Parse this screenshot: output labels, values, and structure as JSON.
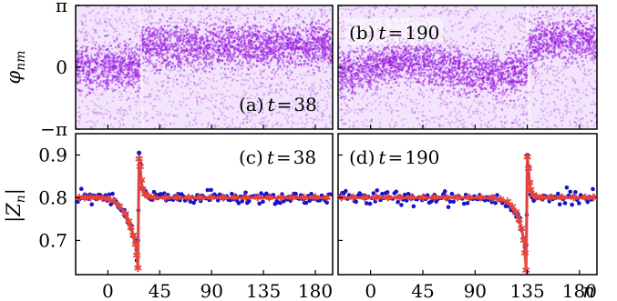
{
  "chart_data": [
    {
      "type": "scatter",
      "panel": "a",
      "label": "(a) t = 38",
      "time": 38,
      "x_axis": {
        "range": [
          -28,
          195
        ],
        "ticks": [
          0,
          45,
          90,
          135,
          180
        ]
      },
      "ylabel": "φnm",
      "ylim": [
        -3.1416,
        3.1416
      ],
      "yticks": [
        "π",
        "0",
        "−π"
      ],
      "yticks_values": [
        3.1416,
        0,
        -3.1416
      ],
      "phase_jump_at_n": 28,
      "left_band_center": 0.0,
      "right_band_center": 1.1,
      "color": "#9b1ee0"
    },
    {
      "type": "scatter",
      "panel": "b",
      "label": "(b) t = 190",
      "time": 190,
      "x_axis": {
        "range": [
          -28,
          195
        ],
        "ticks": [
          0,
          45,
          90,
          135,
          180
        ]
      },
      "ylim": [
        -3.1416,
        3.1416
      ],
      "phase_jump_at_n": 135,
      "left_band_center": 0.0,
      "right_band_center": 1.1,
      "color": "#9b1ee0"
    },
    {
      "type": "line",
      "panel": "c",
      "label": "(c) t = 38",
      "time": 38,
      "xlim": [
        -28,
        195
      ],
      "xticks": [
        "0",
        "45",
        "90",
        "135",
        "180"
      ],
      "xticks_values": [
        0,
        45,
        90,
        135,
        180
      ],
      "ylabel": "|Zn|",
      "ylim": [
        0.62,
        0.95
      ],
      "yticks": [
        "0.9",
        "0.8",
        "0.7"
      ],
      "yticks_values": [
        0.9,
        0.8,
        0.7
      ],
      "series": [
        {
          "style": "blue dots",
          "color": "#1414c8",
          "x": [
            -25,
            -20,
            -15,
            -10,
            -5,
            0,
            5,
            10,
            15,
            18,
            20,
            22,
            24,
            25,
            26,
            27,
            28,
            29,
            30,
            32,
            35,
            40,
            50,
            60,
            70,
            80,
            90,
            100,
            110,
            120,
            130,
            140,
            150,
            160,
            170,
            180,
            190
          ],
          "y": [
            0.8,
            0.799,
            0.804,
            0.797,
            0.801,
            0.795,
            0.79,
            0.776,
            0.757,
            0.741,
            0.728,
            0.712,
            0.695,
            0.678,
            0.7,
            0.905,
            0.88,
            0.841,
            0.822,
            0.808,
            0.803,
            0.8,
            0.802,
            0.798,
            0.801,
            0.799,
            0.803,
            0.798,
            0.801,
            0.8,
            0.802,
            0.799,
            0.801,
            0.8,
            0.798,
            0.802,
            0.8
          ]
        },
        {
          "style": "red stars",
          "color": "#e8453a",
          "x": [
            -25,
            -20,
            -15,
            -10,
            -5,
            0,
            5,
            10,
            15,
            18,
            20,
            22,
            24,
            25,
            26,
            27,
            28,
            29,
            30,
            32,
            35,
            40,
            50,
            60,
            70,
            80,
            90,
            100,
            110,
            120,
            130,
            140,
            150,
            160,
            170,
            180,
            190
          ],
          "y": [
            0.8,
            0.8,
            0.8,
            0.8,
            0.799,
            0.797,
            0.792,
            0.78,
            0.762,
            0.745,
            0.73,
            0.712,
            0.69,
            0.665,
            0.635,
            0.89,
            0.872,
            0.84,
            0.82,
            0.808,
            0.803,
            0.8,
            0.8,
            0.8,
            0.8,
            0.8,
            0.8,
            0.8,
            0.8,
            0.8,
            0.8,
            0.8,
            0.8,
            0.8,
            0.8,
            0.8,
            0.8
          ]
        }
      ]
    },
    {
      "type": "line",
      "panel": "d",
      "label": "(d) t = 190",
      "time": 190,
      "xlim": [
        -28,
        195
      ],
      "xticks": [
        "0",
        "45",
        "90",
        "135",
        "180"
      ],
      "xticks_values": [
        0,
        45,
        90,
        135,
        180
      ],
      "xlabel": "n",
      "ylim": [
        0.62,
        0.95
      ],
      "series": [
        {
          "style": "blue dots",
          "color": "#1414c8",
          "x": [
            -25,
            -15,
            -5,
            5,
            15,
            25,
            35,
            45,
            55,
            65,
            75,
            85,
            95,
            105,
            112,
            118,
            122,
            125,
            128,
            130,
            132,
            133,
            134,
            135,
            136,
            137,
            138,
            140,
            143,
            148,
            155,
            165,
            175,
            185,
            192
          ],
          "y": [
            0.8,
            0.802,
            0.799,
            0.801,
            0.8,
            0.803,
            0.798,
            0.801,
            0.799,
            0.802,
            0.8,
            0.801,
            0.799,
            0.797,
            0.794,
            0.787,
            0.776,
            0.764,
            0.745,
            0.726,
            0.705,
            0.685,
            0.69,
            0.9,
            0.87,
            0.835,
            0.818,
            0.806,
            0.802,
            0.8,
            0.801,
            0.799,
            0.802,
            0.8,
            0.801
          ]
        },
        {
          "style": "red stars",
          "color": "#e8453a",
          "x": [
            -25,
            -15,
            -5,
            5,
            15,
            25,
            35,
            45,
            55,
            65,
            75,
            85,
            95,
            105,
            112,
            118,
            122,
            125,
            128,
            130,
            132,
            133,
            134,
            135,
            136,
            137,
            138,
            140,
            143,
            148,
            155,
            165,
            175,
            185,
            192
          ],
          "y": [
            0.8,
            0.8,
            0.8,
            0.8,
            0.8,
            0.8,
            0.8,
            0.8,
            0.8,
            0.8,
            0.8,
            0.8,
            0.8,
            0.799,
            0.796,
            0.79,
            0.779,
            0.766,
            0.748,
            0.728,
            0.7,
            0.67,
            0.63,
            0.895,
            0.868,
            0.835,
            0.818,
            0.806,
            0.802,
            0.8,
            0.8,
            0.8,
            0.8,
            0.8,
            0.8
          ]
        }
      ]
    }
  ]
}
